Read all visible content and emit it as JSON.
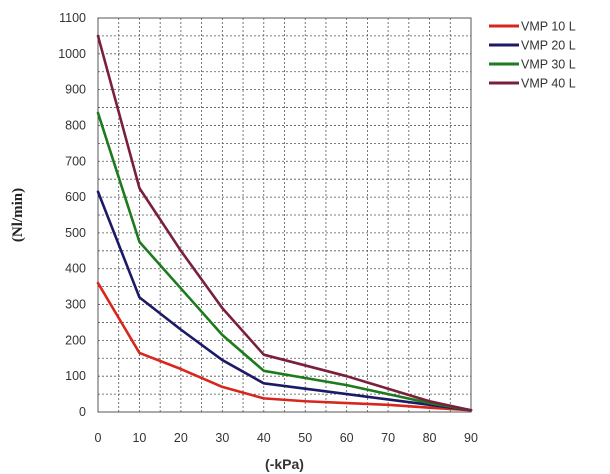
{
  "chart_data": {
    "type": "line",
    "xlabel": "(-kPa)",
    "ylabel": "(Nl/min)",
    "x": [
      0,
      10,
      20,
      30,
      40,
      50,
      60,
      70,
      80,
      90
    ],
    "xlim": [
      0,
      90
    ],
    "ylim": [
      0,
      1100
    ],
    "x_ticks": [
      "0",
      "10",
      "20",
      "30",
      "40",
      "50",
      "60",
      "70",
      "80",
      "90"
    ],
    "y_ticks": [
      "0",
      "100",
      "200",
      "300",
      "400",
      "500",
      "600",
      "700",
      "800",
      "900",
      "1000",
      "1100"
    ],
    "grid": true,
    "legend_position": "top-right",
    "series": [
      {
        "name": "VMP 10 L",
        "color": "#d8261c",
        "values": [
          360,
          165,
          120,
          70,
          38,
          30,
          25,
          20,
          12,
          5
        ]
      },
      {
        "name": "VMP 20 L",
        "color": "#1c1a66",
        "values": [
          615,
          320,
          230,
          145,
          80,
          65,
          50,
          35,
          20,
          5
        ]
      },
      {
        "name": "VMP 30 L",
        "color": "#1d7a1d",
        "values": [
          835,
          475,
          345,
          215,
          115,
          95,
          75,
          50,
          25,
          5
        ]
      },
      {
        "name": "VMP 40 L",
        "color": "#7a1f3c",
        "values": [
          1050,
          625,
          450,
          290,
          160,
          130,
          100,
          65,
          30,
          5
        ]
      }
    ]
  }
}
